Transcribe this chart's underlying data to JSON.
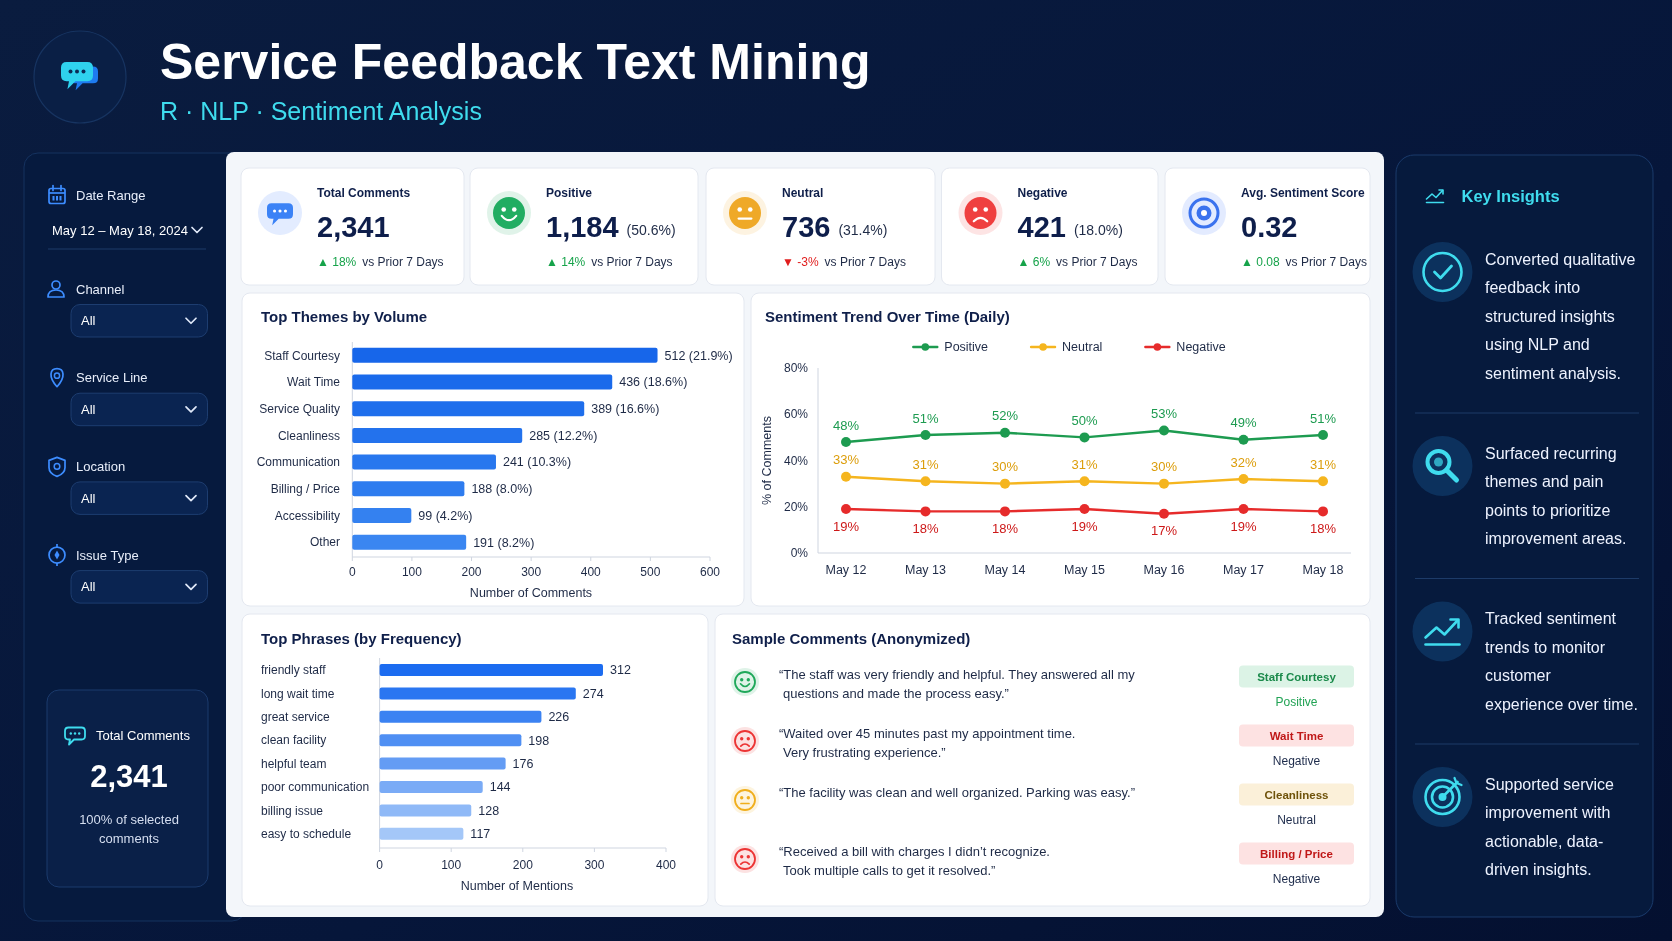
{
  "chart_data": [
    {
      "type": "other",
      "title": "Service Feedback Text Mining",
      "subtitle": "R · NLP · Sentiment Analysis"
    },
    {
      "type": "other",
      "annotations": [
        "Date Range",
        "May 12 – May 18, 2024",
        "Channel",
        "All",
        "Service Line",
        "All",
        "Location",
        "All",
        "Issue Type",
        "All"
      ]
    },
    {
      "type": "other",
      "title": "Total Comments",
      "annotations": [
        "2,341",
        "100% of selected\ncomments"
      ]
    },
    {
      "type": "other",
      "title": "Total Comments",
      "annotations": [
        "2,341",
        "▲ 18%",
        "vs Prior 7 Days"
      ]
    },
    {
      "type": "other",
      "title": "Positive",
      "annotations": [
        "1,184",
        "(50.6%)",
        "▲ 14%",
        "vs Prior 7 Days"
      ]
    },
    {
      "type": "other",
      "title": "Neutral",
      "annotations": [
        "736",
        "(31.4%)",
        "▼ -3%",
        "vs Prior 7 Days"
      ]
    },
    {
      "type": "other",
      "title": "Negative",
      "annotations": [
        "421",
        "(18.0%)",
        "▲ 6%",
        "vs Prior 7 Days"
      ]
    },
    {
      "type": "other",
      "title": "Avg. Sentiment Score",
      "annotations": [
        "0.32",
        "▲ 0.08",
        "vs Prior 7 Days"
      ]
    },
    {
      "type": "bar",
      "orientation": "horizontal",
      "title": "Top Themes by Volume",
      "categories": [
        "Staff Courtesy",
        "Wait Time",
        "Service Quality",
        "Cleanliness",
        "Communication",
        "Billing / Price",
        "Accessibility",
        "Other"
      ],
      "values": [
        512,
        436,
        389,
        285,
        241,
        188,
        99,
        191
      ],
      "colors": [
        "#1766ea",
        "#1a6aeb",
        "#1e6eec",
        "#2372ed",
        "#2877ee",
        "#2e7cef",
        "#3481f0",
        "#3a86f1"
      ],
      "value_labels": [
        "512 (21.9%)",
        "436 (18.6%)",
        "389 (16.6%)",
        "285 (12.2%)",
        "241 (10.3%)",
        "188 (8.0%)",
        "99 (4.2%)",
        "191 (8.2%)"
      ],
      "xlabel": "Number of Comments",
      "xlim": [
        0,
        600
      ],
      "xticks": [
        0,
        100,
        200,
        300,
        400,
        500,
        600
      ]
    },
    {
      "type": "line",
      "title": "Sentiment Trend Over Time (Daily)",
      "categories": [
        "May 12",
        "May 13",
        "May 14",
        "May 15",
        "May 16",
        "May 17",
        "May 18"
      ],
      "series": [
        {
          "name": "Positive",
          "color": "#1d9b50",
          "values": [
            48,
            51,
            52,
            50,
            53,
            49,
            51
          ],
          "value_labels": [
            "48%",
            "51%",
            "52%",
            "50%",
            "53%",
            "49%",
            "51%"
          ]
        },
        {
          "name": "Neutral",
          "color": "#f5b51e",
          "values": [
            33,
            31,
            30,
            31,
            30,
            32,
            31
          ],
          "value_labels": [
            "33%",
            "31%",
            "30%",
            "31%",
            "30%",
            "32%",
            "31%"
          ]
        },
        {
          "name": "Negative",
          "color": "#e62b2b",
          "values": [
            19,
            18,
            18,
            19,
            17,
            19,
            18
          ],
          "value_labels": [
            "19%",
            "18%",
            "18%",
            "19%",
            "17%",
            "19%",
            "18%"
          ]
        }
      ],
      "ylabel": "% of Comments",
      "ylim": [
        0,
        80
      ],
      "yticks": [
        {
          "value": 0,
          "label": "0%"
        },
        {
          "value": 20,
          "label": "20%"
        },
        {
          "value": 40,
          "label": "40%"
        },
        {
          "value": 60,
          "label": "60%"
        },
        {
          "value": 80,
          "label": "80%"
        }
      ],
      "legend": "top",
      "marker": "circle"
    },
    {
      "type": "bar",
      "orientation": "horizontal",
      "title": "Top Phrases (by Frequency)",
      "categories": [
        "friendly staff",
        "long wait time",
        "great service",
        "clean facility",
        "helpful team",
        "poor communication",
        "billing issue",
        "easy to schedule"
      ],
      "values": [
        312,
        274,
        226,
        198,
        176,
        144,
        128,
        117
      ],
      "colors": [
        "#1c6cf0",
        "#2a76f1",
        "#3b82f2",
        "#4f8ff3",
        "#649cf4",
        "#7aabf6",
        "#8fb9f7",
        "#a4c7f8"
      ],
      "data_labels": true,
      "xlabel": "Number of Mentions",
      "xlim": [
        0,
        400
      ],
      "xticks": [
        0,
        100,
        200,
        300,
        400
      ]
    },
    {
      "type": "other",
      "title": "Sample Comments (Anonymized)",
      "annotations": [
        "“The staff was very friendly and helpful. They answered all my\nquestions and made the process easy.”",
        "Staff Courtesy",
        "Positive",
        "“Waited over 45 minutes past my appointment time.\nVery frustrating experience.”",
        "Wait Time",
        "Negative",
        "“The facility was clean and well organized. Parking was easy.”",
        "Cleanliness",
        "Neutral",
        "“Received a bill with charges I didn’t recognize.\nTook multiple calls to get it resolved.”",
        "Billing / Price",
        "Negative"
      ]
    },
    {
      "type": "other",
      "title": "Key Insights",
      "annotations": [
        "Converted qualitative\nfeedback into\nstructured insights\nusing NLP and\nsentiment analysis.",
        "Surfaced recurring\nthemes and pain\npoints to prioritize\nimprovement areas.",
        "Tracked sentiment\ntrends to monitor\ncustomer\nexperience over time.",
        "Supported service\nimprovement with\nactionable, data-\ndriven insights."
      ]
    }
  ]
}
